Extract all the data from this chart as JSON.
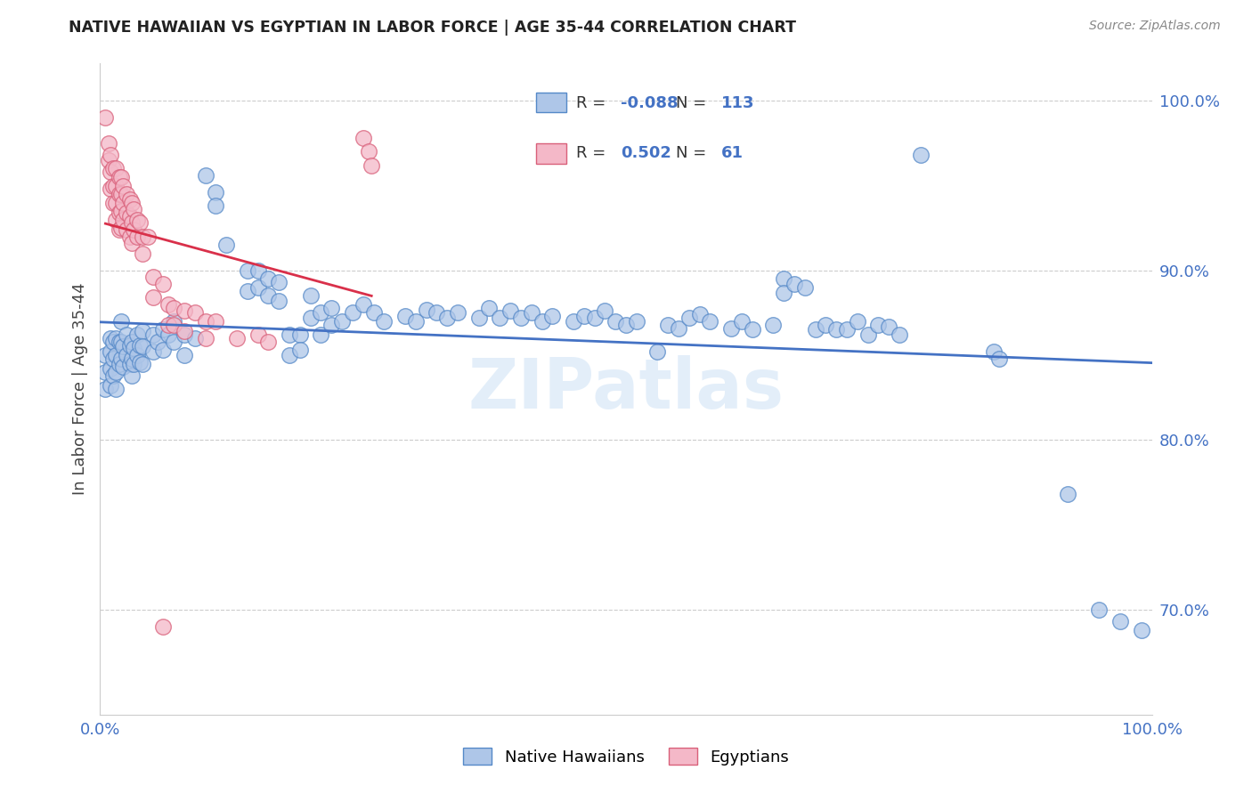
{
  "title": "NATIVE HAWAIIAN VS EGYPTIAN IN LABOR FORCE | AGE 35-44 CORRELATION CHART",
  "source": "Source: ZipAtlas.com",
  "ylabel": "In Labor Force | Age 35-44",
  "xlim": [
    0.0,
    1.0
  ],
  "ylim": [
    0.638,
    1.022
  ],
  "yticks": [
    0.7,
    0.8,
    0.9,
    1.0
  ],
  "ytick_labels": [
    "70.0%",
    "80.0%",
    "90.0%",
    "100.0%"
  ],
  "xticks": [
    0.0,
    0.25,
    0.5,
    0.75,
    1.0
  ],
  "xtick_labels": [
    "0.0%",
    "",
    "",
    "",
    "100.0%"
  ],
  "blue_R": -0.088,
  "blue_N": 113,
  "pink_R": 0.502,
  "pink_N": 61,
  "blue_color": "#aec6e8",
  "pink_color": "#f4b8c8",
  "blue_edge_color": "#5589c8",
  "pink_edge_color": "#d9607a",
  "blue_line_color": "#4472c4",
  "pink_line_color": "#d9304a",
  "background_color": "#ffffff",
  "grid_color": "#cccccc",
  "watermark": "ZIPatlas",
  "legend_label_blue": "Native Hawaiians",
  "legend_label_pink": "Egyptians",
  "blue_scatter": [
    [
      0.005,
      0.85
    ],
    [
      0.005,
      0.84
    ],
    [
      0.005,
      0.83
    ],
    [
      0.01,
      0.86
    ],
    [
      0.01,
      0.852
    ],
    [
      0.01,
      0.842
    ],
    [
      0.01,
      0.832
    ],
    [
      0.012,
      0.858
    ],
    [
      0.012,
      0.848
    ],
    [
      0.012,
      0.838
    ],
    [
      0.015,
      0.86
    ],
    [
      0.015,
      0.85
    ],
    [
      0.015,
      0.84
    ],
    [
      0.015,
      0.83
    ],
    [
      0.018,
      0.858
    ],
    [
      0.018,
      0.845
    ],
    [
      0.02,
      0.87
    ],
    [
      0.02,
      0.858
    ],
    [
      0.02,
      0.848
    ],
    [
      0.022,
      0.855
    ],
    [
      0.022,
      0.843
    ],
    [
      0.025,
      0.862
    ],
    [
      0.025,
      0.85
    ],
    [
      0.028,
      0.856
    ],
    [
      0.028,
      0.845
    ],
    [
      0.03,
      0.858
    ],
    [
      0.03,
      0.848
    ],
    [
      0.03,
      0.838
    ],
    [
      0.032,
      0.854
    ],
    [
      0.032,
      0.845
    ],
    [
      0.035,
      0.862
    ],
    [
      0.035,
      0.85
    ],
    [
      0.038,
      0.856
    ],
    [
      0.038,
      0.846
    ],
    [
      0.04,
      0.864
    ],
    [
      0.04,
      0.855
    ],
    [
      0.04,
      0.845
    ],
    [
      0.05,
      0.862
    ],
    [
      0.05,
      0.852
    ],
    [
      0.055,
      0.858
    ],
    [
      0.06,
      0.865
    ],
    [
      0.06,
      0.853
    ],
    [
      0.065,
      0.862
    ],
    [
      0.07,
      0.87
    ],
    [
      0.07,
      0.858
    ],
    [
      0.08,
      0.862
    ],
    [
      0.08,
      0.85
    ],
    [
      0.09,
      0.86
    ],
    [
      0.1,
      0.956
    ],
    [
      0.11,
      0.946
    ],
    [
      0.11,
      0.938
    ],
    [
      0.12,
      0.915
    ],
    [
      0.14,
      0.9
    ],
    [
      0.14,
      0.888
    ],
    [
      0.15,
      0.9
    ],
    [
      0.15,
      0.89
    ],
    [
      0.16,
      0.895
    ],
    [
      0.16,
      0.885
    ],
    [
      0.17,
      0.893
    ],
    [
      0.17,
      0.882
    ],
    [
      0.18,
      0.862
    ],
    [
      0.18,
      0.85
    ],
    [
      0.19,
      0.862
    ],
    [
      0.19,
      0.853
    ],
    [
      0.2,
      0.885
    ],
    [
      0.2,
      0.872
    ],
    [
      0.21,
      0.875
    ],
    [
      0.21,
      0.862
    ],
    [
      0.22,
      0.878
    ],
    [
      0.22,
      0.868
    ],
    [
      0.23,
      0.87
    ],
    [
      0.24,
      0.875
    ],
    [
      0.25,
      0.88
    ],
    [
      0.26,
      0.875
    ],
    [
      0.27,
      0.87
    ],
    [
      0.29,
      0.873
    ],
    [
      0.3,
      0.87
    ],
    [
      0.31,
      0.877
    ],
    [
      0.32,
      0.875
    ],
    [
      0.33,
      0.872
    ],
    [
      0.34,
      0.875
    ],
    [
      0.36,
      0.872
    ],
    [
      0.37,
      0.878
    ],
    [
      0.38,
      0.872
    ],
    [
      0.39,
      0.876
    ],
    [
      0.4,
      0.872
    ],
    [
      0.41,
      0.875
    ],
    [
      0.42,
      0.87
    ],
    [
      0.43,
      0.873
    ],
    [
      0.45,
      0.87
    ],
    [
      0.46,
      0.873
    ],
    [
      0.47,
      0.872
    ],
    [
      0.48,
      0.876
    ],
    [
      0.49,
      0.87
    ],
    [
      0.5,
      0.868
    ],
    [
      0.51,
      0.87
    ],
    [
      0.53,
      0.852
    ],
    [
      0.54,
      0.868
    ],
    [
      0.55,
      0.866
    ],
    [
      0.56,
      0.872
    ],
    [
      0.57,
      0.874
    ],
    [
      0.58,
      0.87
    ],
    [
      0.6,
      0.866
    ],
    [
      0.61,
      0.87
    ],
    [
      0.62,
      0.865
    ],
    [
      0.64,
      0.868
    ],
    [
      0.65,
      0.895
    ],
    [
      0.65,
      0.887
    ],
    [
      0.66,
      0.892
    ],
    [
      0.67,
      0.89
    ],
    [
      0.68,
      0.865
    ],
    [
      0.69,
      0.868
    ],
    [
      0.7,
      0.865
    ],
    [
      0.71,
      0.865
    ],
    [
      0.72,
      0.87
    ],
    [
      0.73,
      0.862
    ],
    [
      0.74,
      0.868
    ],
    [
      0.75,
      0.867
    ],
    [
      0.76,
      0.862
    ],
    [
      0.78,
      0.968
    ],
    [
      0.85,
      0.852
    ],
    [
      0.855,
      0.848
    ],
    [
      0.92,
      0.768
    ],
    [
      0.95,
      0.7
    ],
    [
      0.97,
      0.693
    ],
    [
      0.99,
      0.688
    ]
  ],
  "pink_scatter": [
    [
      0.005,
      0.99
    ],
    [
      0.008,
      0.975
    ],
    [
      0.008,
      0.965
    ],
    [
      0.01,
      0.968
    ],
    [
      0.01,
      0.958
    ],
    [
      0.01,
      0.948
    ],
    [
      0.012,
      0.96
    ],
    [
      0.012,
      0.95
    ],
    [
      0.012,
      0.94
    ],
    [
      0.015,
      0.96
    ],
    [
      0.015,
      0.95
    ],
    [
      0.015,
      0.94
    ],
    [
      0.015,
      0.93
    ],
    [
      0.018,
      0.955
    ],
    [
      0.018,
      0.945
    ],
    [
      0.018,
      0.934
    ],
    [
      0.018,
      0.924
    ],
    [
      0.02,
      0.955
    ],
    [
      0.02,
      0.945
    ],
    [
      0.02,
      0.935
    ],
    [
      0.02,
      0.925
    ],
    [
      0.022,
      0.95
    ],
    [
      0.022,
      0.94
    ],
    [
      0.022,
      0.93
    ],
    [
      0.025,
      0.945
    ],
    [
      0.025,
      0.934
    ],
    [
      0.025,
      0.924
    ],
    [
      0.028,
      0.942
    ],
    [
      0.028,
      0.932
    ],
    [
      0.028,
      0.92
    ],
    [
      0.03,
      0.94
    ],
    [
      0.03,
      0.928
    ],
    [
      0.03,
      0.916
    ],
    [
      0.032,
      0.936
    ],
    [
      0.032,
      0.924
    ],
    [
      0.035,
      0.93
    ],
    [
      0.035,
      0.92
    ],
    [
      0.038,
      0.928
    ],
    [
      0.04,
      0.92
    ],
    [
      0.04,
      0.91
    ],
    [
      0.045,
      0.92
    ],
    [
      0.05,
      0.896
    ],
    [
      0.05,
      0.884
    ],
    [
      0.06,
      0.892
    ],
    [
      0.065,
      0.88
    ],
    [
      0.065,
      0.868
    ],
    [
      0.07,
      0.878
    ],
    [
      0.07,
      0.868
    ],
    [
      0.08,
      0.876
    ],
    [
      0.08,
      0.864
    ],
    [
      0.09,
      0.875
    ],
    [
      0.1,
      0.87
    ],
    [
      0.1,
      0.86
    ],
    [
      0.11,
      0.87
    ],
    [
      0.13,
      0.86
    ],
    [
      0.15,
      0.862
    ],
    [
      0.16,
      0.858
    ],
    [
      0.25,
      0.978
    ],
    [
      0.255,
      0.97
    ],
    [
      0.258,
      0.962
    ],
    [
      0.06,
      0.69
    ]
  ]
}
